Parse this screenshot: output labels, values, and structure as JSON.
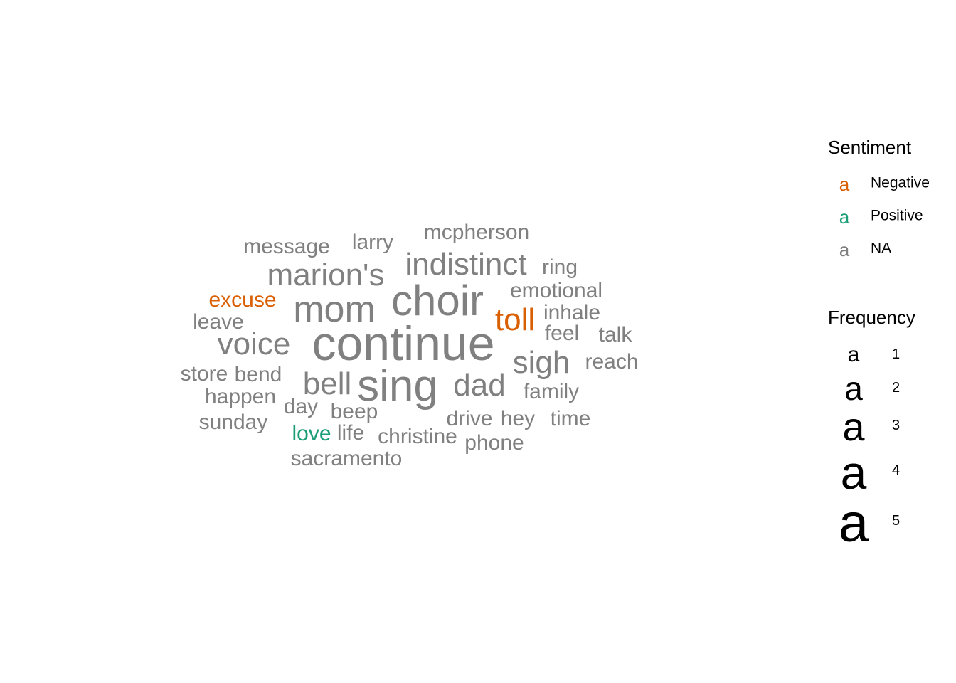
{
  "chart_data": {
    "type": "wordcloud",
    "words": [
      {
        "text": "continue",
        "frequency": 5,
        "sentiment": "NA"
      },
      {
        "text": "sing",
        "frequency": 5,
        "sentiment": "NA"
      },
      {
        "text": "choir",
        "frequency": 4,
        "sentiment": "NA"
      },
      {
        "text": "mom",
        "frequency": 4,
        "sentiment": "NA"
      },
      {
        "text": "toll",
        "frequency": 3,
        "sentiment": "Negative"
      },
      {
        "text": "indistinct",
        "frequency": 3,
        "sentiment": "NA"
      },
      {
        "text": "marion's",
        "frequency": 3,
        "sentiment": "NA"
      },
      {
        "text": "voice",
        "frequency": 3,
        "sentiment": "NA"
      },
      {
        "text": "bell",
        "frequency": 3,
        "sentiment": "NA"
      },
      {
        "text": "dad",
        "frequency": 3,
        "sentiment": "NA"
      },
      {
        "text": "sigh",
        "frequency": 3,
        "sentiment": "NA"
      },
      {
        "text": "message",
        "frequency": 2,
        "sentiment": "NA"
      },
      {
        "text": "larry",
        "frequency": 2,
        "sentiment": "NA"
      },
      {
        "text": "mcpherson",
        "frequency": 2,
        "sentiment": "NA"
      },
      {
        "text": "ring",
        "frequency": 2,
        "sentiment": "NA"
      },
      {
        "text": "emotional",
        "frequency": 2,
        "sentiment": "NA"
      },
      {
        "text": "excuse",
        "frequency": 2,
        "sentiment": "Negative"
      },
      {
        "text": "leave",
        "frequency": 2,
        "sentiment": "NA"
      },
      {
        "text": "inhale",
        "frequency": 2,
        "sentiment": "NA"
      },
      {
        "text": "feel",
        "frequency": 2,
        "sentiment": "NA"
      },
      {
        "text": "talk",
        "frequency": 2,
        "sentiment": "NA"
      },
      {
        "text": "reach",
        "frequency": 2,
        "sentiment": "NA"
      },
      {
        "text": "store",
        "frequency": 2,
        "sentiment": "NA"
      },
      {
        "text": "bend",
        "frequency": 2,
        "sentiment": "NA"
      },
      {
        "text": "happen",
        "frequency": 2,
        "sentiment": "NA"
      },
      {
        "text": "family",
        "frequency": 2,
        "sentiment": "NA"
      },
      {
        "text": "day",
        "frequency": 2,
        "sentiment": "NA"
      },
      {
        "text": "beep",
        "frequency": 2,
        "sentiment": "NA"
      },
      {
        "text": "sunday",
        "frequency": 2,
        "sentiment": "NA"
      },
      {
        "text": "drive",
        "frequency": 2,
        "sentiment": "NA"
      },
      {
        "text": "hey",
        "frequency": 2,
        "sentiment": "NA"
      },
      {
        "text": "time",
        "frequency": 2,
        "sentiment": "NA"
      },
      {
        "text": "love",
        "frequency": 2,
        "sentiment": "Positive"
      },
      {
        "text": "life",
        "frequency": 2,
        "sentiment": "NA"
      },
      {
        "text": "christine",
        "frequency": 2,
        "sentiment": "NA"
      },
      {
        "text": "phone",
        "frequency": 2,
        "sentiment": "NA"
      },
      {
        "text": "sacramento",
        "frequency": 2,
        "sentiment": "NA"
      }
    ],
    "colors": {
      "Negative": "#d95f02",
      "Positive": "#1b9e77",
      "NA": "#808080"
    },
    "legend": {
      "sentiment_title": "Sentiment",
      "sentiment_items": [
        {
          "glyph": "a",
          "label": "Negative",
          "sentiment": "Negative"
        },
        {
          "glyph": "a",
          "label": "Positive",
          "sentiment": "Positive"
        },
        {
          "glyph": "a",
          "label": "NA",
          "sentiment": "NA"
        }
      ],
      "frequency_title": "Frequency",
      "frequency_items": [
        {
          "glyph": "a",
          "label": "1",
          "frequency": 1
        },
        {
          "glyph": "a",
          "label": "2",
          "frequency": 2
        },
        {
          "glyph": "a",
          "label": "3",
          "frequency": 3
        },
        {
          "glyph": "a",
          "label": "4",
          "frequency": 4
        },
        {
          "glyph": "a",
          "label": "5",
          "frequency": 5
        }
      ]
    }
  }
}
